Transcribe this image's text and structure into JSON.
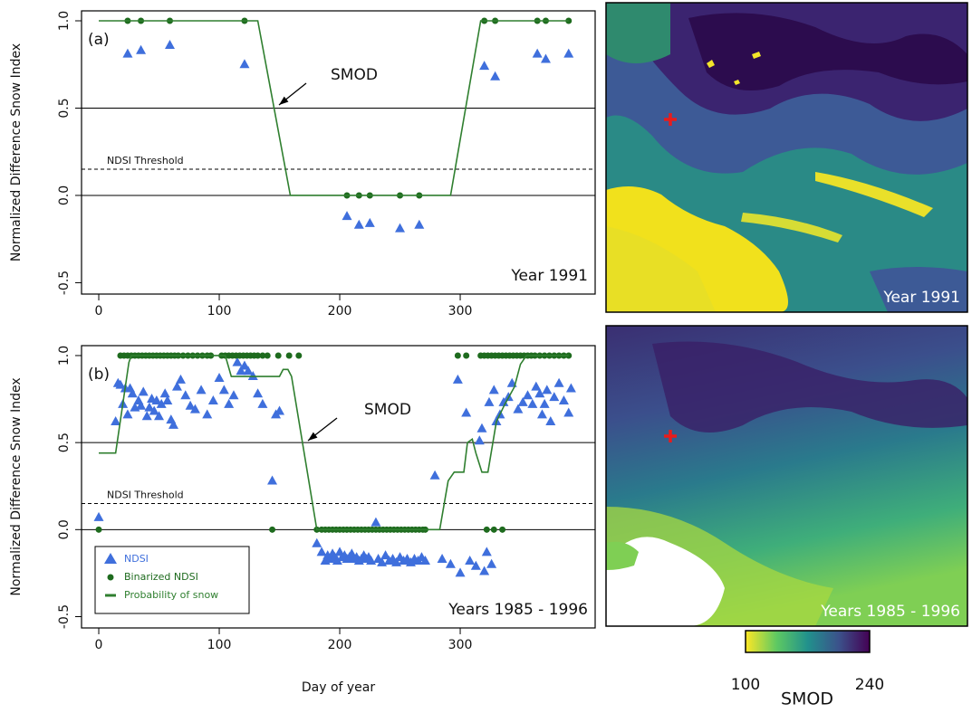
{
  "chart_data": [
    {
      "type": "scatter",
      "panel_label": "(a)",
      "period_label": "Year 1991",
      "annotation": "SMOD",
      "y_label": "Normalized Difference Snow Index",
      "xlim": [
        -14.3,
        412
      ],
      "xticks": [
        0,
        100,
        200,
        300
      ],
      "ylim": [
        -0.565,
        1.057
      ],
      "yticks": [
        -0.5,
        {
          "value": 0,
          "label": "0.0"
        },
        0.5,
        {
          "value": 1,
          "label": "1.0"
        }
      ],
      "grid": false,
      "hlines": [
        0,
        0.5
      ],
      "threshold": {
        "value": 0.15,
        "label": "NDSI Threshold"
      },
      "series": [
        {
          "marker": "triangle",
          "color": "#3f6fdc",
          "x": [
            24,
            35,
            59,
            121,
            206,
            216,
            225,
            250,
            266,
            320,
            329,
            364,
            371,
            390
          ],
          "values": [
            0.81,
            0.83,
            0.86,
            0.75,
            -0.12,
            -0.17,
            -0.16,
            -0.19,
            -0.17,
            0.74,
            0.68,
            0.81,
            0.78,
            0.81
          ]
        },
        {
          "marker": "dot",
          "color": "#1e6b1e",
          "x": [
            24,
            35,
            59,
            121,
            206,
            216,
            225,
            250,
            266,
            320,
            329,
            364,
            371,
            390
          ],
          "values": [
            1,
            1,
            1,
            1,
            0,
            0,
            0,
            0,
            0,
            1,
            1,
            1,
            1,
            1
          ]
        },
        {
          "marker": "line",
          "color": "#2f7f2f",
          "x": [
            0,
            132,
            159,
            292,
            317,
            390
          ],
          "values": [
            1,
            1,
            0,
            0,
            1,
            1
          ]
        }
      ]
    },
    {
      "type": "scatter",
      "panel_label": "(b)",
      "period_label": "Years 1985 - 1996",
      "annotation": "SMOD",
      "y_label": "Normalized Difference Snow Index",
      "x_label": "Day of year",
      "xlim": [
        -14.3,
        412
      ],
      "xticks": [
        0,
        100,
        200,
        300
      ],
      "ylim": [
        -0.565,
        1.057
      ],
      "yticks": [
        -0.5,
        {
          "value": 0,
          "label": "0.0"
        },
        0.5,
        {
          "value": 1,
          "label": "1.0"
        }
      ],
      "grid": false,
      "hlines": [
        0,
        0.5
      ],
      "threshold": {
        "value": 0.15,
        "label": "NDSI Threshold"
      },
      "legend": "bottom-left",
      "series": [
        {
          "name": "NDSI",
          "marker": "triangle",
          "color": "#3f6fdc",
          "x": [
            0,
            14,
            16,
            18,
            20,
            22,
            24,
            26,
            28,
            30,
            33,
            35,
            37,
            40,
            42,
            44,
            46,
            48,
            50,
            52,
            55,
            57,
            60,
            62,
            65,
            68,
            72,
            76,
            80,
            85,
            90,
            95,
            100,
            104,
            108,
            112,
            115,
            118,
            121,
            124,
            128,
            132,
            136,
            144,
            147,
            150,
            181,
            185,
            188,
            190,
            192,
            194,
            196,
            198,
            200,
            202,
            204,
            206,
            208,
            210,
            212,
            214,
            216,
            218,
            220,
            222,
            224,
            226,
            230,
            232,
            235,
            238,
            241,
            244,
            247,
            250,
            253,
            256,
            259,
            262,
            265,
            268,
            271,
            279,
            285,
            292,
            298,
            300,
            305,
            308,
            313,
            316,
            318,
            320,
            322,
            324,
            326,
            328,
            330,
            333,
            336,
            340,
            343,
            348,
            352,
            356,
            360,
            363,
            366,
            368,
            370,
            372,
            375,
            378,
            382,
            386,
            390,
            392
          ],
          "values": [
            0.07,
            0.62,
            0.84,
            0.83,
            0.72,
            0.81,
            0.66,
            0.81,
            0.78,
            0.7,
            0.74,
            0.71,
            0.79,
            0.65,
            0.7,
            0.75,
            0.68,
            0.74,
            0.65,
            0.72,
            0.78,
            0.74,
            0.63,
            0.6,
            0.82,
            0.86,
            0.77,
            0.71,
            0.69,
            0.8,
            0.66,
            0.74,
            0.87,
            0.8,
            0.72,
            0.77,
            0.96,
            0.91,
            0.94,
            0.91,
            0.88,
            0.78,
            0.72,
            0.28,
            0.66,
            0.68,
            -0.08,
            -0.13,
            -0.18,
            -0.15,
            -0.17,
            -0.14,
            -0.16,
            -0.18,
            -0.13,
            -0.16,
            -0.15,
            -0.17,
            -0.16,
            -0.14,
            -0.17,
            -0.16,
            -0.18,
            -0.17,
            -0.15,
            -0.17,
            -0.16,
            -0.18,
            0.04,
            -0.17,
            -0.19,
            -0.15,
            -0.18,
            -0.17,
            -0.19,
            -0.16,
            -0.18,
            -0.17,
            -0.19,
            -0.17,
            -0.18,
            -0.16,
            -0.18,
            0.31,
            -0.17,
            -0.2,
            0.86,
            -0.25,
            0.67,
            -0.18,
            -0.21,
            0.51,
            0.58,
            -0.24,
            -0.13,
            0.73,
            -0.2,
            0.8,
            0.62,
            0.66,
            0.73,
            0.76,
            0.84,
            0.69,
            0.73,
            0.77,
            0.72,
            0.82,
            0.78,
            0.66,
            0.72,
            0.8,
            0.62,
            0.76,
            0.84,
            0.74,
            0.67,
            0.81
          ]
        },
        {
          "name": "Binarized NDSI",
          "marker": "dot",
          "color": "#1e6b1e",
          "x": [
            0,
            18,
            21,
            24,
            27,
            30,
            33,
            36,
            39,
            42,
            45,
            48,
            51,
            54,
            57,
            60,
            63,
            66,
            70,
            74,
            78,
            82,
            86,
            90,
            93,
            102,
            105,
            108,
            111,
            114,
            117,
            120,
            123,
            126,
            129,
            132,
            136,
            140,
            144,
            149,
            158,
            166,
            181,
            185,
            188,
            191,
            194,
            197,
            200,
            203,
            206,
            209,
            212,
            215,
            218,
            221,
            224,
            227,
            230,
            233,
            236,
            239,
            242,
            245,
            248,
            251,
            254,
            257,
            260,
            263,
            266,
            269,
            271,
            322,
            328,
            335,
            298,
            305,
            317,
            320,
            323,
            326,
            329,
            332,
            335,
            338,
            341,
            344,
            347,
            350,
            353,
            356,
            359,
            362,
            366,
            370,
            374,
            378,
            382,
            386,
            390
          ],
          "values": [
            0,
            1,
            1,
            1,
            1,
            1,
            1,
            1,
            1,
            1,
            1,
            1,
            1,
            1,
            1,
            1,
            1,
            1,
            1,
            1,
            1,
            1,
            1,
            1,
            1,
            1,
            1,
            1,
            1,
            1,
            1,
            1,
            1,
            1,
            1,
            1,
            1,
            1,
            0,
            1,
            1,
            1,
            0,
            0,
            0,
            0,
            0,
            0,
            0,
            0,
            0,
            0,
            0,
            0,
            0,
            0,
            0,
            0,
            0,
            0,
            0,
            0,
            0,
            0,
            0,
            0,
            0,
            0,
            0,
            0,
            0,
            0,
            0,
            0,
            0,
            0,
            1,
            1,
            1,
            1,
            1,
            1,
            1,
            1,
            1,
            1,
            1,
            1,
            1,
            1,
            1,
            1,
            1,
            1,
            1,
            1,
            1,
            1,
            1,
            1,
            1
          ]
        },
        {
          "name": "Probability of snow",
          "marker": "line",
          "color": "#2f7f2f",
          "x": [
            0,
            14,
            25,
            27,
            105,
            110,
            150,
            153,
            157,
            160,
            181,
            283,
            290,
            295,
            303,
            306,
            310,
            313,
            318,
            323,
            330,
            337,
            345,
            350,
            355,
            390
          ],
          "values": [
            0.44,
            0.44,
            0.96,
            1,
            1,
            0.88,
            0.88,
            0.92,
            0.92,
            0.88,
            0,
            0,
            0.28,
            0.33,
            0.33,
            0.5,
            0.52,
            0.44,
            0.33,
            0.33,
            0.62,
            0.72,
            0.82,
            0.95,
            1,
            1
          ]
        }
      ]
    }
  ],
  "maps": [
    {
      "label": "Year 1991"
    },
    {
      "label": "Years 1985 - 1996"
    }
  ],
  "colorbar": {
    "title": "SMOD",
    "range": [
      100,
      240
    ],
    "ticks": [
      100,
      240
    ]
  }
}
